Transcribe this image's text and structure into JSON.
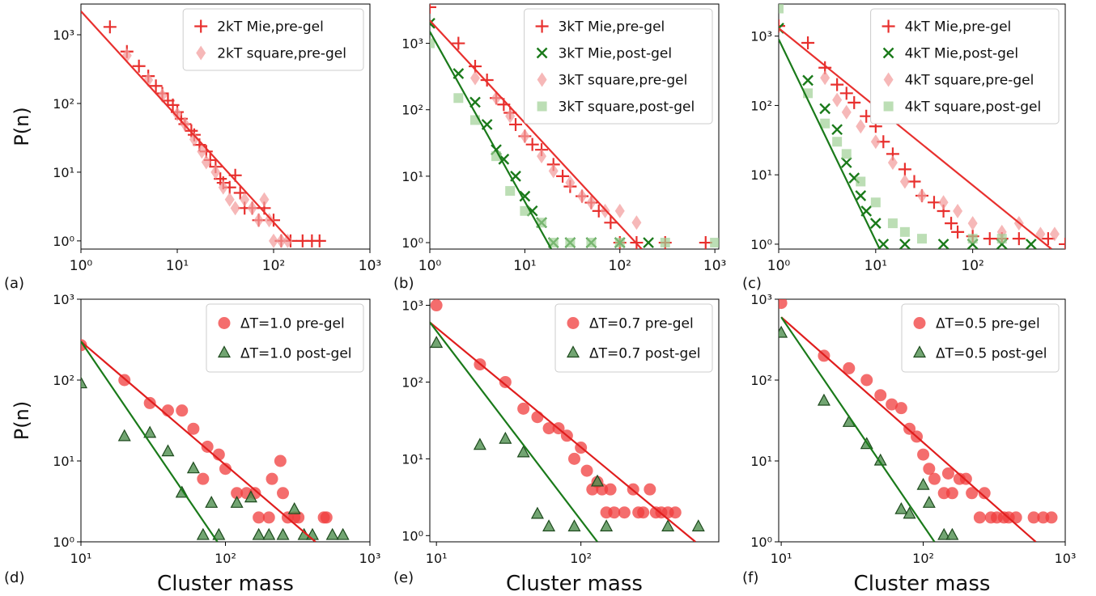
{
  "chart_data": [
    {
      "type": "scatter",
      "label": "(a)",
      "ylabel": "P(n)",
      "log_x": true,
      "log_y": true,
      "legend": "upper right",
      "xlim": [
        1,
        1000
      ],
      "ylim": [
        0.76,
        2800
      ],
      "xticks": [
        {
          "value": 1,
          "label": "10⁰"
        },
        {
          "value": 10,
          "label": "10¹"
        },
        {
          "value": 100,
          "label": "10²"
        },
        {
          "value": 1000,
          "label": "10³"
        }
      ],
      "yticks": [
        {
          "value": 1,
          "label": "10⁰"
        },
        {
          "value": 10,
          "label": "10¹"
        },
        {
          "value": 100,
          "label": "10²"
        },
        {
          "value": 1000,
          "label": "10³"
        }
      ],
      "series": [
        {
          "name": "2kT Mie,pre-gel",
          "marker": "plus",
          "color": "#e8302e",
          "x": [
            2,
            3,
            4,
            5,
            6,
            7,
            8,
            9,
            10,
            11,
            12,
            14,
            15,
            17,
            20,
            22,
            25,
            28,
            30,
            35,
            40,
            45,
            50,
            60,
            70,
            80,
            100,
            120,
            150,
            200,
            250,
            300
          ],
          "values": [
            1300,
            570,
            350,
            250,
            180,
            140,
            110,
            95,
            75,
            60,
            50,
            40,
            35,
            25,
            20,
            15,
            12,
            8,
            7,
            6,
            9,
            5,
            3,
            3,
            2,
            3,
            2,
            1,
            1,
            1,
            1,
            1
          ]
        },
        {
          "name": "2kT square,pre-gel",
          "marker": "diamond",
          "color": "#f29a9a",
          "x": [
            3,
            5,
            7,
            10,
            12,
            15,
            18,
            20,
            25,
            30,
            35,
            40,
            50,
            60,
            70,
            80,
            90,
            100,
            120,
            140
          ],
          "values": [
            500,
            220,
            130,
            70,
            50,
            30,
            20,
            14,
            10,
            6,
            4,
            3,
            4,
            3,
            2,
            4,
            2,
            1,
            1,
            1
          ]
        }
      ],
      "fit_lines": [
        {
          "color": "#e8302e",
          "x": [
            1,
            150
          ],
          "values": [
            2200,
            1
          ]
        }
      ]
    },
    {
      "type": "scatter",
      "label": "(b)",
      "log_x": true,
      "log_y": true,
      "legend": "upper right",
      "xlim": [
        1,
        1100
      ],
      "ylim": [
        0.8,
        3900
      ],
      "xticks": [
        {
          "value": 1,
          "label": "10⁰"
        },
        {
          "value": 10,
          "label": "10¹"
        },
        {
          "value": 100,
          "label": "10²"
        },
        {
          "value": 1000,
          "label": "10³"
        }
      ],
      "yticks": [
        {
          "value": 1,
          "label": "10⁰"
        },
        {
          "value": 10,
          "label": "10¹"
        },
        {
          "value": 100,
          "label": "10²"
        },
        {
          "value": 1000,
          "label": "10³"
        }
      ],
      "series": [
        {
          "name": "3kT Mie,pre-gel",
          "marker": "plus",
          "color": "#e8302e",
          "x": [
            1,
            2,
            3,
            4,
            5,
            6,
            7,
            8,
            10,
            12,
            15,
            20,
            25,
            30,
            40,
            50,
            60,
            80,
            100,
            150,
            300,
            800
          ],
          "values": [
            3500,
            1000,
            450,
            280,
            150,
            120,
            90,
            60,
            40,
            30,
            25,
            15,
            10,
            7,
            5,
            4,
            3,
            2,
            1,
            1,
            1,
            1
          ]
        },
        {
          "name": "3kT Mie,post-gel",
          "marker": "x",
          "color": "#1a7a1a",
          "x": [
            1,
            2,
            3,
            4,
            5,
            6,
            8,
            10,
            12,
            15,
            20,
            30,
            50,
            100,
            200
          ],
          "values": [
            2000,
            350,
            130,
            60,
            25,
            18,
            10,
            5,
            3,
            2,
            1,
            1,
            1,
            1,
            1
          ]
        },
        {
          "name": "3kT square,pre-gel",
          "marker": "diamond",
          "color": "#f29a9a",
          "x": [
            3,
            5,
            7,
            10,
            15,
            20,
            30,
            40,
            50,
            70,
            100,
            150
          ],
          "values": [
            300,
            150,
            80,
            40,
            20,
            12,
            8,
            5,
            4,
            3,
            3,
            2
          ]
        },
        {
          "name": "3kT square,post-gel",
          "marker": "square",
          "color": "#9fd096",
          "x": [
            1,
            2,
            3,
            5,
            7,
            10,
            15,
            20,
            30,
            50,
            100,
            300,
            1000
          ],
          "values": [
            1000,
            150,
            70,
            20,
            6,
            3,
            2,
            1,
            1,
            1,
            1,
            1,
            1
          ]
        }
      ],
      "fit_lines": [
        {
          "color": "#e8302e",
          "x": [
            1,
            170
          ],
          "values": [
            2200,
            0.8
          ]
        },
        {
          "color": "#1a7a1a",
          "x": [
            1,
            19
          ],
          "values": [
            1500,
            0.8
          ]
        }
      ]
    },
    {
      "type": "scatter",
      "label": "(c)",
      "log_x": true,
      "log_y": true,
      "legend": "upper right",
      "xlim": [
        1,
        900
      ],
      "ylim": [
        0.85,
        2900
      ],
      "xticks": [
        {
          "value": 1,
          "label": "10⁰"
        },
        {
          "value": 10,
          "label": "10¹"
        },
        {
          "value": 100,
          "label": "10²"
        }
      ],
      "yticks": [
        {
          "value": 1,
          "label": "10⁰"
        },
        {
          "value": 10,
          "label": "10¹"
        },
        {
          "value": 100,
          "label": "10²"
        },
        {
          "value": 1000,
          "label": "10³"
        }
      ],
      "series": [
        {
          "name": "4kT Mie,pre-gel",
          "marker": "plus",
          "color": "#e8302e",
          "x": [
            1,
            2,
            3,
            4,
            5,
            6,
            8,
            10,
            12,
            15,
            20,
            25,
            30,
            40,
            50,
            60,
            70,
            100,
            150,
            200,
            300,
            600,
            900
          ],
          "values": [
            1400,
            800,
            350,
            200,
            150,
            110,
            70,
            50,
            30,
            20,
            12,
            8,
            5,
            4,
            3,
            2,
            1.5,
            1.3,
            1.2,
            1.2,
            1.2,
            1.2,
            1
          ]
        },
        {
          "name": "4kT Mie,post-gel",
          "marker": "x",
          "color": "#1a7a1a",
          "x": [
            1,
            2,
            3,
            4,
            5,
            6,
            7,
            8,
            10,
            12,
            20,
            50,
            100,
            200,
            400
          ],
          "values": [
            1300,
            230,
            90,
            45,
            15,
            9,
            5,
            3,
            2,
            1,
            1,
            1,
            1,
            1,
            1
          ]
        },
        {
          "name": "4kT square,pre-gel",
          "marker": "diamond",
          "color": "#f29a9a",
          "x": [
            3,
            4,
            5,
            7,
            10,
            15,
            20,
            30,
            50,
            70,
            100,
            200,
            300,
            500,
            700
          ],
          "values": [
            250,
            120,
            80,
            50,
            30,
            15,
            8,
            5,
            4,
            3,
            2,
            1.5,
            2,
            1.4,
            1.4
          ]
        },
        {
          "name": "4kT square,post-gel",
          "marker": "square",
          "color": "#9fd096",
          "x": [
            1,
            2,
            3,
            4,
            5,
            7,
            10,
            15,
            20,
            30,
            100,
            200
          ],
          "values": [
            2500,
            150,
            55,
            30,
            20,
            8,
            4,
            2,
            1.5,
            1.2,
            1.2,
            1.2
          ]
        }
      ],
      "fit_lines": [
        {
          "color": "#e8302e",
          "x": [
            1,
            650
          ],
          "values": [
            1300,
            0.85
          ]
        },
        {
          "color": "#1a7a1a",
          "x": [
            1,
            11
          ],
          "values": [
            900,
            0.85
          ]
        }
      ]
    },
    {
      "type": "scatter",
      "label": "(d)",
      "ylabel": "P(n)",
      "xlabel": "Cluster mass",
      "log_x": true,
      "log_y": true,
      "legend": "upper right",
      "xlim": [
        10,
        1000
      ],
      "ylim": [
        1,
        1000
      ],
      "xticks": [
        {
          "value": 10,
          "label": "10¹"
        },
        {
          "value": 100,
          "label": "10²"
        },
        {
          "value": 1000,
          "label": "10³"
        }
      ],
      "yticks": [
        {
          "value": 1,
          "label": "10⁰"
        },
        {
          "value": 10,
          "label": "10¹"
        },
        {
          "value": 100,
          "label": "10²"
        },
        {
          "value": 1000,
          "label": "10³"
        }
      ],
      "series": [
        {
          "name": "ΔT=1.0 pre-gel",
          "marker": "circle",
          "color": "#f03c3c",
          "x": [
            10,
            20,
            30,
            40,
            50,
            60,
            70,
            75,
            90,
            100,
            120,
            140,
            160,
            170,
            200,
            210,
            240,
            250,
            270,
            300,
            320,
            480,
            500
          ],
          "values": [
            270,
            100,
            52,
            42,
            42,
            25,
            6,
            15,
            12,
            8,
            4,
            4,
            4,
            2,
            2,
            6,
            10,
            4,
            2,
            2,
            2,
            2,
            2
          ]
        },
        {
          "name": "ΔT=1.0 post-gel",
          "marker": "triangle",
          "color": "#4f8f4f",
          "x": [
            10,
            20,
            30,
            40,
            50,
            60,
            70,
            80,
            90,
            120,
            150,
            170,
            200,
            250,
            300,
            350,
            400,
            550,
            650
          ],
          "values": [
            90,
            20,
            22,
            13,
            4,
            8,
            1.2,
            3,
            1.2,
            3,
            3.5,
            1.2,
            1.2,
            1.2,
            2.5,
            1.2,
            1.2,
            1.2,
            1.2
          ]
        }
      ],
      "fit_lines": [
        {
          "color": "#e01e1e",
          "x": [
            10,
            420
          ],
          "values": [
            300,
            1
          ]
        },
        {
          "color": "#1a7a1a",
          "x": [
            10,
            88
          ],
          "values": [
            300,
            1
          ]
        }
      ]
    },
    {
      "type": "scatter",
      "label": "(e)",
      "xlabel": "Cluster mass",
      "log_x": true,
      "log_y": true,
      "legend": "upper right",
      "xlim": [
        9,
        900
      ],
      "ylim": [
        0.83,
        1200
      ],
      "xticks": [
        {
          "value": 10,
          "label": "10¹"
        },
        {
          "value": 100,
          "label": "10²"
        }
      ],
      "yticks": [
        {
          "value": 1,
          "label": "10⁰"
        },
        {
          "value": 10,
          "label": "10¹"
        },
        {
          "value": 100,
          "label": "10²"
        },
        {
          "value": 1000,
          "label": "10³"
        }
      ],
      "series": [
        {
          "name": "ΔT=0.7 pre-gel",
          "marker": "circle",
          "color": "#f03c3c",
          "x": [
            10,
            20,
            30,
            40,
            50,
            60,
            70,
            80,
            90,
            100,
            110,
            120,
            130,
            140,
            150,
            160,
            170,
            200,
            230,
            250,
            270,
            300,
            330,
            360,
            400,
            450
          ],
          "values": [
            1000,
            170,
            100,
            45,
            35,
            25,
            25,
            20,
            10,
            14,
            7,
            4,
            5,
            4,
            2,
            4,
            2,
            2,
            4,
            2,
            2,
            4,
            2,
            2,
            2,
            2
          ]
        },
        {
          "name": "ΔT=0.7 post-gel",
          "marker": "triangle",
          "color": "#4f8f4f",
          "x": [
            10,
            20,
            30,
            40,
            50,
            60,
            90,
            130,
            150,
            400,
            650
          ],
          "values": [
            320,
            15,
            18,
            12,
            1.9,
            1.3,
            1.3,
            5,
            1.3,
            1.3,
            1.3
          ]
        }
      ],
      "fit_lines": [
        {
          "color": "#e01e1e",
          "x": [
            9,
            620
          ],
          "values": [
            600,
            0.83
          ]
        },
        {
          "color": "#1a7a1a",
          "x": [
            9,
            130
          ],
          "values": [
            600,
            0.83
          ]
        }
      ]
    },
    {
      "type": "scatter",
      "label": "(f)",
      "xlabel": "Cluster mass",
      "log_x": true,
      "log_y": true,
      "legend": "upper right",
      "xlim": [
        9.6,
        1000
      ],
      "ylim": [
        1,
        1000
      ],
      "xticks": [
        {
          "value": 10,
          "label": "10¹"
        },
        {
          "value": 100,
          "label": "10²"
        },
        {
          "value": 1000,
          "label": "10³"
        }
      ],
      "yticks": [
        {
          "value": 1,
          "label": "10⁰"
        },
        {
          "value": 10,
          "label": "10¹"
        },
        {
          "value": 100,
          "label": "10²"
        },
        {
          "value": 1000,
          "label": "10³"
        }
      ],
      "series": [
        {
          "name": "ΔT=0.5 pre-gel",
          "marker": "circle",
          "color": "#f03c3c",
          "x": [
            10,
            20,
            30,
            40,
            50,
            60,
            70,
            80,
            90,
            100,
            110,
            120,
            140,
            150,
            160,
            180,
            200,
            220,
            250,
            270,
            300,
            330,
            370,
            400,
            450,
            600,
            700,
            800
          ],
          "values": [
            900,
            200,
            140,
            100,
            65,
            50,
            45,
            25,
            20,
            12,
            8,
            6,
            4,
            7,
            4,
            6,
            6,
            4,
            2,
            4,
            2,
            2,
            2,
            2,
            2,
            2,
            2,
            2
          ]
        },
        {
          "name": "ΔT=0.5 post-gel",
          "marker": "triangle",
          "color": "#4f8f4f",
          "x": [
            10,
            20,
            30,
            40,
            50,
            70,
            80,
            100,
            110,
            140,
            160
          ],
          "values": [
            380,
            55,
            30,
            16,
            10,
            2.5,
            2.2,
            5,
            3,
            1.2,
            1.2
          ]
        }
      ],
      "fit_lines": [
        {
          "color": "#e01e1e",
          "x": [
            10,
            620
          ],
          "values": [
            600,
            1
          ]
        },
        {
          "color": "#1a7a1a",
          "x": [
            10,
            120
          ],
          "values": [
            600,
            1
          ]
        }
      ]
    }
  ]
}
